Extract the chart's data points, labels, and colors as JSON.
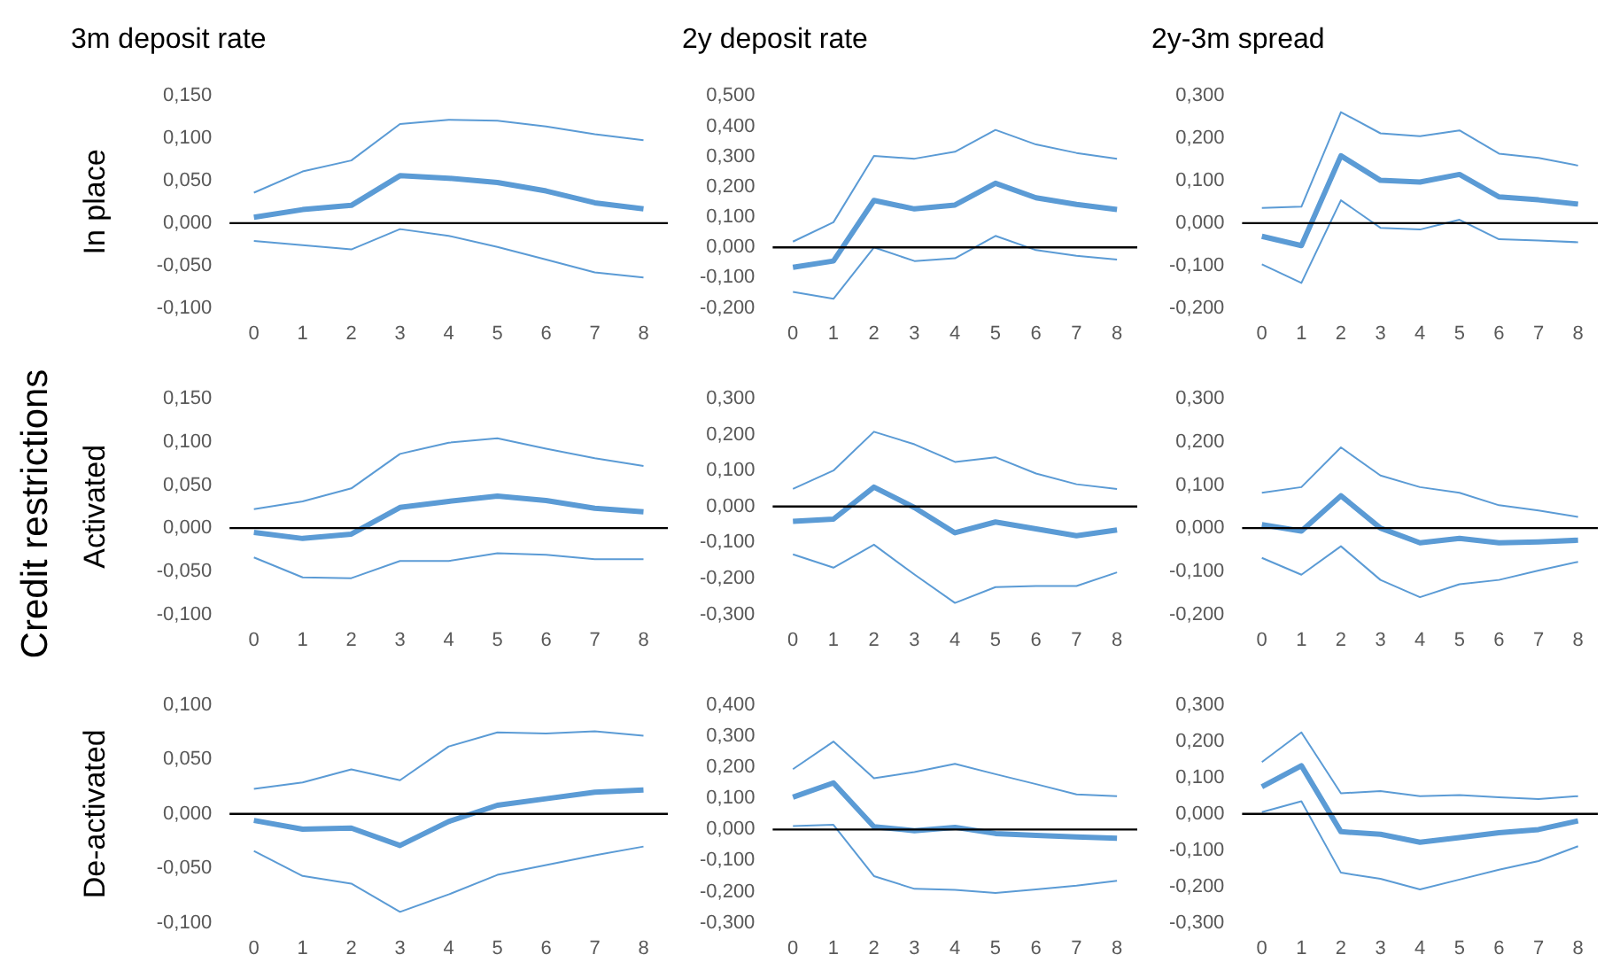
{
  "chart_data": [
    {
      "type": "line",
      "title": "3m deposit rate",
      "ylabel": "In place",
      "categories": [
        "0",
        "1",
        "2",
        "3",
        "4",
        "5",
        "6",
        "7",
        "8"
      ],
      "series": [
        {
          "color": "#5b9bd5",
          "values": [
            -0.021,
            -0.026,
            -0.031,
            -0.007,
            -0.015,
            -0.028,
            -0.043,
            -0.058,
            -0.064
          ]
        },
        {
          "color": "#5b9bd5",
          "values": [
            0.007,
            0.016,
            0.021,
            0.056,
            0.053,
            0.048,
            0.038,
            0.024,
            0.017
          ]
        },
        {
          "color": "#5b9bd5",
          "values": [
            0.036,
            0.061,
            0.074,
            0.117,
            0.122,
            0.121,
            0.114,
            0.105,
            0.098
          ]
        }
      ],
      "ylim": [
        -0.1,
        0.15
      ],
      "yticks": [
        {
          "value": -0.1,
          "label": "-0,100"
        },
        {
          "value": -0.05,
          "label": "-0,050"
        },
        {
          "value": 0,
          "label": "0,000"
        },
        {
          "value": 0.05,
          "label": "0,050"
        },
        {
          "value": 0.1,
          "label": "0,100"
        },
        {
          "value": 0.15,
          "label": "0,150"
        }
      ],
      "ref_lines": [
        {
          "axis": "y",
          "value": 0,
          "color": "#000000"
        }
      ],
      "grid": false,
      "legend": false,
      "marker": "none",
      "line_style": "solid"
    },
    {
      "type": "line",
      "title": "2y deposit rate",
      "categories": [
        "0",
        "1",
        "2",
        "3",
        "4",
        "5",
        "6",
        "7",
        "8"
      ],
      "series": [
        {
          "color": "#5b9bd5",
          "values": [
            -0.147,
            -0.17,
            0.0,
            -0.045,
            -0.036,
            0.038,
            -0.009,
            -0.028,
            -0.04
          ]
        },
        {
          "color": "#5b9bd5",
          "values": [
            -0.066,
            -0.045,
            0.155,
            0.127,
            0.14,
            0.212,
            0.164,
            0.142,
            0.125
          ]
        },
        {
          "color": "#5b9bd5",
          "values": [
            0.019,
            0.083,
            0.302,
            0.293,
            0.316,
            0.388,
            0.34,
            0.312,
            0.293
          ]
        }
      ],
      "ylim": [
        -0.2,
        0.5
      ],
      "yticks": [
        {
          "value": -0.2,
          "label": "-0,200"
        },
        {
          "value": -0.1,
          "label": "-0,100"
        },
        {
          "value": 0,
          "label": "0,000"
        },
        {
          "value": 0.1,
          "label": "0,100"
        },
        {
          "value": 0.2,
          "label": "0,200"
        },
        {
          "value": 0.3,
          "label": "0,300"
        },
        {
          "value": 0.4,
          "label": "0,400"
        },
        {
          "value": 0.5,
          "label": "0,500"
        }
      ],
      "ref_lines": [
        {
          "axis": "y",
          "value": 0,
          "color": "#000000"
        }
      ],
      "grid": false,
      "legend": false,
      "marker": "none",
      "line_style": "solid"
    },
    {
      "type": "line",
      "title": "2y-3m spread",
      "categories": [
        "0",
        "1",
        "2",
        "3",
        "4",
        "5",
        "6",
        "7",
        "8"
      ],
      "series": [
        {
          "color": "#5b9bd5",
          "values": [
            -0.097,
            -0.141,
            0.054,
            -0.011,
            -0.015,
            0.008,
            -0.038,
            -0.041,
            -0.045
          ]
        },
        {
          "color": "#5b9bd5",
          "values": [
            -0.031,
            -0.053,
            0.159,
            0.101,
            0.097,
            0.115,
            0.062,
            0.055,
            0.045
          ]
        },
        {
          "color": "#5b9bd5",
          "values": [
            0.036,
            0.039,
            0.262,
            0.212,
            0.205,
            0.219,
            0.164,
            0.154,
            0.136
          ]
        }
      ],
      "ylim": [
        -0.2,
        0.3
      ],
      "yticks": [
        {
          "value": -0.2,
          "label": "-0,200"
        },
        {
          "value": -0.1,
          "label": "-0,100"
        },
        {
          "value": 0,
          "label": "0,000"
        },
        {
          "value": 0.1,
          "label": "0,100"
        },
        {
          "value": 0.2,
          "label": "0,200"
        },
        {
          "value": 0.3,
          "label": "0,300"
        }
      ],
      "ref_lines": [
        {
          "axis": "y",
          "value": 0,
          "color": "#000000"
        }
      ],
      "grid": false,
      "legend": false,
      "marker": "none",
      "line_style": "solid"
    },
    {
      "type": "line",
      "ylabel": "Activated",
      "annotations": [
        "Credit restrictions"
      ],
      "categories": [
        "0",
        "1",
        "2",
        "3",
        "4",
        "5",
        "6",
        "7",
        "8"
      ],
      "series": [
        {
          "color": "#5b9bd5",
          "values": [
            -0.034,
            -0.057,
            -0.058,
            -0.038,
            -0.038,
            -0.029,
            -0.031,
            -0.036,
            -0.036
          ]
        },
        {
          "color": "#5b9bd5",
          "values": [
            -0.005,
            -0.012,
            -0.007,
            0.024,
            0.031,
            0.037,
            0.032,
            0.023,
            0.019
          ]
        },
        {
          "color": "#5b9bd5",
          "values": [
            0.022,
            0.031,
            0.046,
            0.086,
            0.099,
            0.104,
            0.092,
            0.081,
            0.072
          ]
        }
      ],
      "ylim": [
        -0.1,
        0.15
      ],
      "yticks": [
        {
          "value": -0.1,
          "label": "-0,100"
        },
        {
          "value": -0.05,
          "label": "-0,050"
        },
        {
          "value": 0,
          "label": "0,000"
        },
        {
          "value": 0.05,
          "label": "0,050"
        },
        {
          "value": 0.1,
          "label": "0,100"
        },
        {
          "value": 0.15,
          "label": "0,150"
        }
      ],
      "ref_lines": [
        {
          "axis": "y",
          "value": 0,
          "color": "#000000"
        }
      ],
      "grid": false,
      "legend": false,
      "marker": "none",
      "line_style": "solid"
    },
    {
      "type": "line",
      "categories": [
        "0",
        "1",
        "2",
        "3",
        "4",
        "5",
        "6",
        "7",
        "8"
      ],
      "series": [
        {
          "color": "#5b9bd5",
          "values": [
            -0.133,
            -0.17,
            -0.106,
            -0.189,
            -0.268,
            -0.224,
            -0.221,
            -0.221,
            -0.183
          ]
        },
        {
          "color": "#5b9bd5",
          "values": [
            -0.041,
            -0.035,
            0.054,
            -0.003,
            -0.073,
            -0.043,
            -0.062,
            -0.081,
            -0.065
          ]
        },
        {
          "color": "#5b9bd5",
          "values": [
            0.049,
            0.1,
            0.208,
            0.173,
            0.124,
            0.137,
            0.092,
            0.062,
            0.049
          ]
        }
      ],
      "ylim": [
        -0.3,
        0.3
      ],
      "yticks": [
        {
          "value": -0.3,
          "label": "-0,300"
        },
        {
          "value": -0.2,
          "label": "-0,200"
        },
        {
          "value": -0.1,
          "label": "-0,100"
        },
        {
          "value": 0,
          "label": "0,000"
        },
        {
          "value": 0.1,
          "label": "0,100"
        },
        {
          "value": 0.2,
          "label": "0,200"
        },
        {
          "value": 0.3,
          "label": "0,300"
        }
      ],
      "ref_lines": [
        {
          "axis": "y",
          "value": 0,
          "color": "#000000"
        }
      ],
      "grid": false,
      "legend": false,
      "marker": "none",
      "line_style": "solid"
    },
    {
      "type": "line",
      "categories": [
        "0",
        "1",
        "2",
        "3",
        "4",
        "5",
        "6",
        "7",
        "8"
      ],
      "series": [
        {
          "color": "#5b9bd5",
          "values": [
            -0.069,
            -0.108,
            -0.042,
            -0.12,
            -0.16,
            -0.13,
            -0.12,
            -0.098,
            -0.078
          ]
        },
        {
          "color": "#5b9bd5",
          "values": [
            0.008,
            -0.007,
            0.075,
            0.0,
            -0.034,
            -0.024,
            -0.034,
            -0.032,
            -0.028
          ]
        },
        {
          "color": "#5b9bd5",
          "values": [
            0.082,
            0.095,
            0.187,
            0.122,
            0.095,
            0.082,
            0.053,
            0.041,
            0.026
          ]
        }
      ],
      "ylim": [
        -0.2,
        0.3
      ],
      "yticks": [
        {
          "value": -0.2,
          "label": "-0,200"
        },
        {
          "value": -0.1,
          "label": "-0,100"
        },
        {
          "value": 0,
          "label": "0,000"
        },
        {
          "value": 0.1,
          "label": "0,100"
        },
        {
          "value": 0.2,
          "label": "0,200"
        },
        {
          "value": 0.3,
          "label": "0,300"
        }
      ],
      "ref_lines": [
        {
          "axis": "y",
          "value": 0,
          "color": "#000000"
        }
      ],
      "grid": false,
      "legend": false,
      "marker": "none",
      "line_style": "solid"
    },
    {
      "type": "line",
      "ylabel": "De-activated",
      "categories": [
        "0",
        "1",
        "2",
        "3",
        "4",
        "5",
        "6",
        "7",
        "8"
      ],
      "series": [
        {
          "color": "#5b9bd5",
          "values": [
            -0.034,
            -0.057,
            -0.064,
            -0.09,
            -0.074,
            -0.056,
            -0.047,
            -0.038,
            -0.03
          ]
        },
        {
          "color": "#5b9bd5",
          "values": [
            -0.006,
            -0.014,
            -0.013,
            -0.029,
            -0.007,
            0.008,
            0.014,
            0.02,
            0.022
          ]
        },
        {
          "color": "#5b9bd5",
          "values": [
            0.023,
            0.029,
            0.041,
            0.031,
            0.062,
            0.075,
            0.074,
            0.076,
            0.072
          ]
        }
      ],
      "ylim": [
        -0.1,
        0.1
      ],
      "yticks": [
        {
          "value": -0.1,
          "label": "-0,100"
        },
        {
          "value": -0.05,
          "label": "-0,050"
        },
        {
          "value": 0,
          "label": "0,000"
        },
        {
          "value": 0.05,
          "label": "0,050"
        },
        {
          "value": 0.1,
          "label": "0,100"
        }
      ],
      "ref_lines": [
        {
          "axis": "y",
          "value": 0,
          "color": "#000000"
        }
      ],
      "grid": false,
      "legend": false,
      "marker": "none",
      "line_style": "solid"
    },
    {
      "type": "line",
      "categories": [
        "0",
        "1",
        "2",
        "3",
        "4",
        "5",
        "6",
        "7",
        "8"
      ],
      "series": [
        {
          "color": "#5b9bd5",
          "values": [
            0.011,
            0.015,
            -0.15,
            -0.191,
            -0.194,
            -0.204,
            -0.193,
            -0.181,
            -0.165
          ]
        },
        {
          "color": "#5b9bd5",
          "values": [
            0.104,
            0.15,
            0.009,
            -0.004,
            0.007,
            -0.013,
            -0.019,
            -0.024,
            -0.028
          ]
        },
        {
          "color": "#5b9bd5",
          "values": [
            0.194,
            0.283,
            0.165,
            0.185,
            0.211,
            0.178,
            0.146,
            0.113,
            0.107
          ]
        }
      ],
      "ylim": [
        -0.3,
        0.4
      ],
      "yticks": [
        {
          "value": -0.3,
          "label": "-0,300"
        },
        {
          "value": -0.2,
          "label": "-0,200"
        },
        {
          "value": -0.1,
          "label": "-0,100"
        },
        {
          "value": 0,
          "label": "0,000"
        },
        {
          "value": 0.1,
          "label": "0,100"
        },
        {
          "value": 0.2,
          "label": "0,200"
        },
        {
          "value": 0.3,
          "label": "0,300"
        },
        {
          "value": 0.4,
          "label": "0,400"
        }
      ],
      "ref_lines": [
        {
          "axis": "y",
          "value": 0,
          "color": "#000000"
        }
      ],
      "grid": false,
      "legend": false,
      "marker": "none",
      "line_style": "solid"
    },
    {
      "type": "line",
      "categories": [
        "0",
        "1",
        "2",
        "3",
        "4",
        "5",
        "6",
        "7",
        "8"
      ],
      "series": [
        {
          "color": "#5b9bd5",
          "values": [
            0.005,
            0.035,
            -0.162,
            -0.179,
            -0.208,
            -0.181,
            -0.154,
            -0.13,
            -0.089
          ]
        },
        {
          "color": "#5b9bd5",
          "values": [
            0.075,
            0.133,
            -0.049,
            -0.056,
            -0.078,
            -0.065,
            -0.052,
            -0.043,
            -0.019
          ]
        },
        {
          "color": "#5b9bd5",
          "values": [
            0.143,
            0.225,
            0.057,
            0.063,
            0.049,
            0.052,
            0.046,
            0.041,
            0.049
          ]
        }
      ],
      "ylim": [
        -0.3,
        0.3
      ],
      "yticks": [
        {
          "value": -0.3,
          "label": "-0,300"
        },
        {
          "value": -0.2,
          "label": "-0,200"
        },
        {
          "value": -0.1,
          "label": "-0,100"
        },
        {
          "value": 0,
          "label": "0,000"
        },
        {
          "value": 0.1,
          "label": "0,100"
        },
        {
          "value": 0.2,
          "label": "0,200"
        },
        {
          "value": 0.3,
          "label": "0,300"
        }
      ],
      "ref_lines": [
        {
          "axis": "y",
          "value": 0,
          "color": "#000000"
        }
      ],
      "grid": false,
      "legend": false,
      "marker": "none",
      "line_style": "solid"
    }
  ]
}
